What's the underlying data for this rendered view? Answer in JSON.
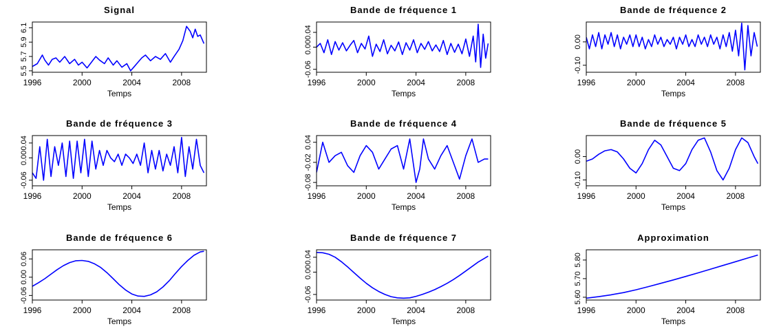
{
  "chart_data": [
    {
      "type": "line",
      "title": "Signal",
      "xlabel": "Temps",
      "ylabel": "",
      "xlim": [
        1996,
        2010
      ],
      "ylim": [
        5.48,
        6.18
      ],
      "xticks": [
        "1996",
        "2000",
        "2004",
        "2008"
      ],
      "yticks": [
        "5.5",
        "5.7",
        "5.9",
        "6.1"
      ],
      "series": [
        {
          "color": "#0000ff",
          "x": [
            1996.0,
            1996.4,
            1996.8,
            1997.0,
            1997.3,
            1997.6,
            1997.9,
            1998.2,
            1998.6,
            1999.0,
            1999.4,
            1999.7,
            2000.0,
            2000.4,
            2000.8,
            2001.1,
            2001.4,
            2001.8,
            2002.1,
            2002.5,
            2002.8,
            2003.2,
            2003.6,
            2003.9,
            2004.2,
            2004.5,
            2004.8,
            2005.1,
            2005.5,
            2005.9,
            2006.3,
            2006.7,
            2007.1,
            2007.4,
            2007.8,
            2008.1,
            2008.4,
            2008.7,
            2008.9,
            2009.1,
            2009.3,
            2009.5,
            2009.8
          ],
          "values": [
            5.56,
            5.6,
            5.72,
            5.65,
            5.58,
            5.66,
            5.68,
            5.62,
            5.7,
            5.6,
            5.66,
            5.58,
            5.62,
            5.54,
            5.63,
            5.7,
            5.65,
            5.6,
            5.68,
            5.58,
            5.64,
            5.55,
            5.6,
            5.5,
            5.56,
            5.62,
            5.68,
            5.72,
            5.64,
            5.7,
            5.66,
            5.74,
            5.62,
            5.7,
            5.8,
            5.92,
            6.12,
            6.05,
            5.96,
            6.08,
            5.98,
            6.0,
            5.88
          ]
        }
      ]
    },
    {
      "type": "line",
      "title": "Bande de fréquence 1",
      "xlabel": "Temps",
      "ylabel": "",
      "xlim": [
        1996,
        2010
      ],
      "ylim": [
        -0.068,
        0.068
      ],
      "xticks": [
        "1996",
        "2000",
        "2004",
        "2008"
      ],
      "yticks": [
        "-0.06",
        "0.00",
        "0.04"
      ],
      "series": [
        {
          "color": "#0000ff",
          "x": [
            1996.0,
            1996.3,
            1996.6,
            1996.9,
            1997.2,
            1997.5,
            1997.8,
            1998.1,
            1998.4,
            1998.7,
            1999.0,
            1999.3,
            1999.6,
            1999.9,
            2000.2,
            2000.5,
            2000.8,
            2001.1,
            2001.4,
            2001.7,
            2002.0,
            2002.3,
            2002.6,
            2002.9,
            2003.2,
            2003.5,
            2003.8,
            2004.1,
            2004.4,
            2004.7,
            2005.0,
            2005.3,
            2005.6,
            2005.9,
            2006.2,
            2006.5,
            2006.8,
            2007.1,
            2007.4,
            2007.7,
            2008.0,
            2008.3,
            2008.6,
            2008.8,
            2009.0,
            2009.2,
            2009.4,
            2009.6,
            2009.8
          ],
          "values": [
            0.0,
            0.01,
            -0.015,
            0.02,
            -0.02,
            0.015,
            -0.008,
            0.012,
            -0.01,
            0.005,
            0.018,
            -0.015,
            0.01,
            -0.005,
            0.03,
            -0.025,
            0.008,
            -0.012,
            0.02,
            -0.018,
            0.005,
            -0.01,
            0.014,
            -0.02,
            0.012,
            -0.008,
            0.02,
            -0.015,
            0.01,
            -0.006,
            0.015,
            -0.01,
            0.006,
            -0.012,
            0.018,
            -0.02,
            0.01,
            -0.014,
            0.008,
            -0.018,
            0.022,
            -0.025,
            0.03,
            -0.04,
            0.062,
            -0.055,
            0.035,
            -0.03,
            0.01
          ]
        }
      ]
    },
    {
      "type": "line",
      "title": "Bande de fréquence 2",
      "xlabel": "Temps",
      "ylabel": "",
      "xlim": [
        1996,
        2010
      ],
      "ylim": [
        -0.13,
        0.085
      ],
      "xticks": [
        "1996",
        "2000",
        "2004",
        "2008"
      ],
      "yticks": [
        "-0.10",
        "0.00"
      ],
      "series": [
        {
          "color": "#0000ff",
          "x": [
            1996.0,
            1996.25,
            1996.5,
            1996.75,
            1997.0,
            1997.25,
            1997.5,
            1997.75,
            1998.0,
            1998.25,
            1998.5,
            1998.75,
            1999.0,
            1999.25,
            1999.5,
            1999.75,
            2000.0,
            2000.25,
            2000.5,
            2000.75,
            2001.0,
            2001.25,
            2001.5,
            2001.75,
            2002.0,
            2002.25,
            2002.5,
            2002.75,
            2003.0,
            2003.25,
            2003.5,
            2003.75,
            2004.0,
            2004.25,
            2004.5,
            2004.75,
            2005.0,
            2005.25,
            2005.5,
            2005.75,
            2006.0,
            2006.25,
            2006.5,
            2006.75,
            2007.0,
            2007.25,
            2007.5,
            2007.75,
            2008.0,
            2008.25,
            2008.5,
            2008.75,
            2009.0,
            2009.25,
            2009.5,
            2009.75
          ],
          "values": [
            0.02,
            -0.03,
            0.03,
            -0.02,
            0.04,
            -0.03,
            0.03,
            -0.01,
            0.04,
            -0.02,
            0.03,
            -0.03,
            0.02,
            -0.01,
            0.03,
            -0.02,
            0.03,
            -0.02,
            0.02,
            -0.03,
            0.01,
            -0.02,
            0.03,
            -0.01,
            0.02,
            -0.02,
            0.01,
            -0.01,
            0.02,
            -0.03,
            0.02,
            -0.01,
            0.03,
            -0.02,
            0.01,
            -0.02,
            0.03,
            -0.01,
            0.02,
            -0.02,
            0.03,
            -0.01,
            0.02,
            -0.03,
            0.03,
            -0.02,
            0.04,
            -0.04,
            0.05,
            -0.06,
            0.08,
            -0.12,
            0.07,
            -0.06,
            0.04,
            -0.02
          ]
        }
      ]
    },
    {
      "type": "line",
      "title": "Bande de fréquence 3",
      "xlabel": "Temps",
      "ylabel": "",
      "xlim": [
        1996,
        2010
      ],
      "ylim": [
        -0.075,
        0.06
      ],
      "xticks": [
        "1996",
        "2000",
        "2004",
        "2008"
      ],
      "yticks": [
        "-0.06",
        "0.00",
        "0.04"
      ],
      "series": [
        {
          "color": "#0000ff",
          "x": [
            1996.0,
            1996.3,
            1996.6,
            1996.9,
            1997.2,
            1997.5,
            1997.8,
            1998.1,
            1998.4,
            1998.7,
            1999.0,
            1999.3,
            1999.6,
            1999.9,
            2000.2,
            2000.5,
            2000.8,
            2001.1,
            2001.4,
            2001.7,
            2002.0,
            2002.3,
            2002.6,
            2002.9,
            2003.2,
            2003.5,
            2003.8,
            2004.1,
            2004.4,
            2004.7,
            2005.0,
            2005.3,
            2005.6,
            2005.9,
            2006.2,
            2006.5,
            2006.8,
            2007.1,
            2007.4,
            2007.7,
            2008.0,
            2008.3,
            2008.6,
            2008.9,
            2009.2,
            2009.5,
            2009.8
          ],
          "values": [
            -0.04,
            -0.055,
            0.03,
            -0.06,
            0.05,
            -0.05,
            0.03,
            -0.02,
            0.04,
            -0.05,
            0.045,
            -0.055,
            0.045,
            -0.04,
            0.05,
            -0.05,
            0.045,
            -0.03,
            0.02,
            -0.02,
            0.02,
            0.0,
            -0.01,
            0.01,
            -0.02,
            0.01,
            0.0,
            -0.015,
            0.01,
            -0.02,
            0.04,
            -0.04,
            0.02,
            -0.03,
            0.02,
            -0.035,
            0.01,
            -0.02,
            0.03,
            -0.04,
            0.055,
            -0.05,
            0.03,
            -0.03,
            0.05,
            -0.02,
            -0.04
          ]
        }
      ]
    },
    {
      "type": "line",
      "title": "Bande de fréquence 4",
      "xlabel": "Temps",
      "ylabel": "",
      "xlim": [
        1996,
        2010
      ],
      "ylim": [
        -0.09,
        0.06
      ],
      "xticks": [
        "1996",
        "2000",
        "2004",
        "2008"
      ],
      "yticks": [
        "-0.08",
        "-0.02",
        "0.04"
      ],
      "series": [
        {
          "color": "#0000ff",
          "x": [
            1996.0,
            1996.5,
            1997.0,
            1997.5,
            1998.0,
            1998.5,
            1999.0,
            1999.5,
            2000.0,
            2000.5,
            2001.0,
            2001.5,
            2002.0,
            2002.5,
            2003.0,
            2003.5,
            2004.0,
            2004.3,
            2004.6,
            2005.0,
            2005.5,
            2006.0,
            2006.5,
            2007.0,
            2007.5,
            2008.0,
            2008.5,
            2009.0,
            2009.5,
            2009.8
          ],
          "values": [
            -0.05,
            0.04,
            -0.02,
            0.0,
            0.01,
            -0.03,
            -0.05,
            0.0,
            0.03,
            0.01,
            -0.04,
            -0.01,
            0.02,
            0.03,
            -0.04,
            0.05,
            -0.08,
            -0.04,
            0.05,
            -0.01,
            -0.04,
            0.0,
            0.03,
            -0.02,
            -0.07,
            0.0,
            0.05,
            -0.02,
            -0.01,
            -0.01
          ]
        }
      ]
    },
    {
      "type": "line",
      "title": "Bande de fréquence 5",
      "xlabel": "Temps",
      "ylabel": "",
      "xlim": [
        1996,
        2010
      ],
      "ylim": [
        -0.125,
        0.09
      ],
      "xticks": [
        "1996",
        "2000",
        "2004",
        "2008"
      ],
      "yticks": [
        "-0.10",
        "0.00"
      ],
      "series": [
        {
          "color": "#0000ff",
          "x": [
            1996.0,
            1996.5,
            1997.0,
            1997.5,
            1998.0,
            1998.5,
            1999.0,
            1999.5,
            2000.0,
            2000.5,
            2001.0,
            2001.5,
            2002.0,
            2002.5,
            2003.0,
            2003.5,
            2004.0,
            2004.5,
            2005.0,
            2005.5,
            2006.0,
            2006.5,
            2007.0,
            2007.5,
            2008.0,
            2008.5,
            2009.0,
            2009.5,
            2009.8
          ],
          "values": [
            -0.02,
            -0.01,
            0.01,
            0.025,
            0.03,
            0.02,
            -0.01,
            -0.05,
            -0.07,
            -0.03,
            0.03,
            0.07,
            0.05,
            0.0,
            -0.05,
            -0.06,
            -0.03,
            0.03,
            0.07,
            0.08,
            0.02,
            -0.06,
            -0.1,
            -0.05,
            0.03,
            0.08,
            0.06,
            0.0,
            -0.03
          ]
        }
      ]
    },
    {
      "type": "line",
      "title": "Bande de fréquence 6",
      "xlabel": "Temps",
      "ylabel": "",
      "xlim": [
        1996,
        2010
      ],
      "ylim": [
        -0.075,
        0.09
      ],
      "xticks": [
        "1996",
        "2000",
        "2004",
        "2008"
      ],
      "yticks": [
        "-0.06",
        "0.00",
        "0.06"
      ],
      "series": [
        {
          "color": "#0000ff",
          "x": [
            1996.0,
            1996.5,
            1997.0,
            1997.5,
            1998.0,
            1998.5,
            1999.0,
            1999.5,
            2000.0,
            2000.5,
            2001.0,
            2001.5,
            2002.0,
            2002.5,
            2003.0,
            2003.5,
            2004.0,
            2004.5,
            2005.0,
            2005.5,
            2006.0,
            2006.5,
            2007.0,
            2007.5,
            2008.0,
            2008.5,
            2009.0,
            2009.5,
            2009.8
          ],
          "values": [
            -0.03,
            -0.018,
            -0.005,
            0.01,
            0.025,
            0.038,
            0.048,
            0.054,
            0.055,
            0.052,
            0.044,
            0.032,
            0.015,
            -0.005,
            -0.025,
            -0.042,
            -0.055,
            -0.062,
            -0.063,
            -0.058,
            -0.048,
            -0.032,
            -0.012,
            0.012,
            0.035,
            0.055,
            0.072,
            0.083,
            0.085
          ]
        }
      ]
    },
    {
      "type": "line",
      "title": "Bande de fréquence 7",
      "xlabel": "Temps",
      "ylabel": "",
      "xlim": [
        1996,
        2010
      ],
      "ylim": [
        -0.075,
        0.06
      ],
      "xticks": [
        "1996",
        "2000",
        "2004",
        "2008"
      ],
      "yticks": [
        "-0.06",
        "0.00",
        "0.04"
      ],
      "series": [
        {
          "color": "#0000ff",
          "x": [
            1996.0,
            1996.5,
            1997.0,
            1997.5,
            1998.0,
            1998.5,
            1999.0,
            1999.5,
            2000.0,
            2000.5,
            2001.0,
            2001.5,
            2002.0,
            2002.5,
            2003.0,
            2003.5,
            2004.0,
            2004.5,
            2005.0,
            2005.5,
            2006.0,
            2006.5,
            2007.0,
            2007.5,
            2008.0,
            2008.5,
            2009.0,
            2009.5,
            2009.8
          ],
          "values": [
            0.053,
            0.052,
            0.048,
            0.04,
            0.028,
            0.014,
            -0.001,
            -0.016,
            -0.03,
            -0.042,
            -0.052,
            -0.06,
            -0.066,
            -0.069,
            -0.07,
            -0.069,
            -0.065,
            -0.06,
            -0.054,
            -0.047,
            -0.039,
            -0.03,
            -0.02,
            -0.009,
            0.003,
            0.015,
            0.027,
            0.037,
            0.043
          ]
        }
      ]
    },
    {
      "type": "line",
      "title": "Approximation",
      "xlabel": "Temps",
      "ylabel": "",
      "xlim": [
        1996,
        2010
      ],
      "ylim": [
        5.585,
        5.855
      ],
      "xticks": [
        "1996",
        "2000",
        "2004",
        "2008"
      ],
      "yticks": [
        "5.60",
        "5.70",
        "5.80"
      ],
      "series": [
        {
          "color": "#0000ff",
          "x": [
            1996.0,
            1997.0,
            1998.0,
            1999.0,
            2000.0,
            2001.0,
            2002.0,
            2003.0,
            2004.0,
            2005.0,
            2006.0,
            2007.0,
            2008.0,
            2009.0,
            2009.8
          ],
          "values": [
            5.595,
            5.603,
            5.613,
            5.625,
            5.64,
            5.657,
            5.675,
            5.693,
            5.712,
            5.731,
            5.751,
            5.771,
            5.791,
            5.811,
            5.827
          ]
        }
      ]
    }
  ]
}
